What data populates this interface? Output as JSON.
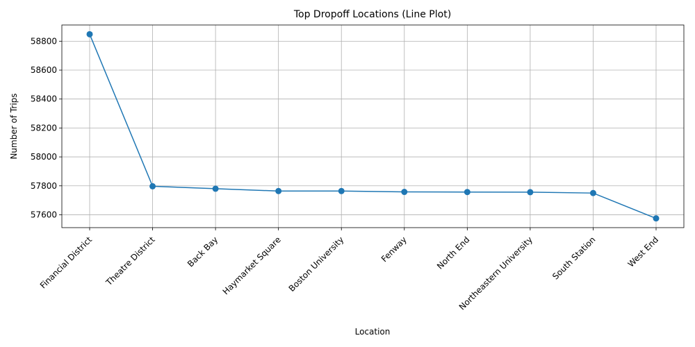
{
  "chart_data": {
    "type": "line",
    "title": "Top Dropoff Locations (Line Plot)",
    "xlabel": "Location",
    "ylabel": "Number of Trips",
    "categories": [
      "Financial District",
      "Theatre District",
      "Back Bay",
      "Haymarket Square",
      "Boston University",
      "Fenway",
      "North End",
      "Northeastern University",
      "South Station",
      "West End"
    ],
    "series": [
      {
        "values": [
          58848,
          57797,
          57780,
          57764,
          57764,
          57758,
          57757,
          57756,
          57750,
          57575
        ]
      }
    ],
    "yticks": [
      57600,
      57800,
      58000,
      58200,
      58400,
      58600,
      58800
    ],
    "ylim": [
      57511,
      58912
    ],
    "grid": true,
    "line_color": "#1f77b4",
    "marker": "circle"
  }
}
